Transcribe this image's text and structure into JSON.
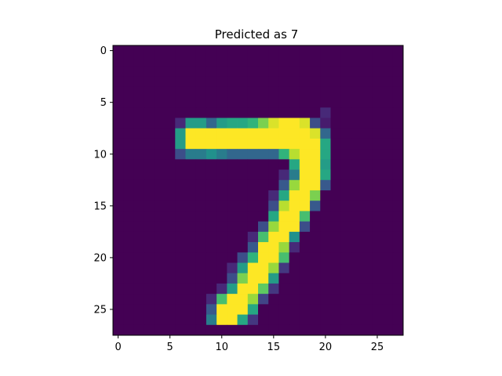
{
  "chart_data": {
    "type": "heatmap",
    "title": "Predicted as 7",
    "xlabel": "",
    "ylabel": "",
    "rows": 28,
    "cols": 28,
    "xlim": [
      -0.5,
      27.5
    ],
    "ylim": [
      27.5,
      -0.5
    ],
    "y_axis_inverted": true,
    "x_ticks": [
      0,
      5,
      10,
      15,
      20,
      25
    ],
    "y_ticks": [
      0,
      5,
      10,
      15,
      20,
      25
    ],
    "colormap": "viridis",
    "value_range": [
      0,
      1
    ],
    "grid": false,
    "legend": "none",
    "nonzero_cells": [
      [
        6,
        20,
        0.15
      ],
      [
        7,
        6,
        0.15
      ],
      [
        7,
        7,
        0.55
      ],
      [
        7,
        8,
        0.55
      ],
      [
        7,
        9,
        0.4
      ],
      [
        7,
        10,
        0.55
      ],
      [
        7,
        11,
        0.6
      ],
      [
        7,
        12,
        0.6
      ],
      [
        7,
        13,
        0.65
      ],
      [
        7,
        14,
        0.8
      ],
      [
        7,
        15,
        0.95
      ],
      [
        7,
        16,
        1.0
      ],
      [
        7,
        17,
        1.0
      ],
      [
        7,
        18,
        0.95
      ],
      [
        7,
        19,
        0.3
      ],
      [
        7,
        20,
        0.1
      ],
      [
        8,
        6,
        0.55
      ],
      [
        8,
        7,
        1.0
      ],
      [
        8,
        8,
        1.0
      ],
      [
        8,
        9,
        1.0
      ],
      [
        8,
        10,
        1.0
      ],
      [
        8,
        11,
        1.0
      ],
      [
        8,
        12,
        1.0
      ],
      [
        8,
        13,
        1.0
      ],
      [
        8,
        14,
        1.0
      ],
      [
        8,
        15,
        1.0
      ],
      [
        8,
        16,
        1.0
      ],
      [
        8,
        17,
        1.0
      ],
      [
        8,
        18,
        1.0
      ],
      [
        8,
        19,
        0.95
      ],
      [
        8,
        20,
        0.4
      ],
      [
        9,
        6,
        0.55
      ],
      [
        9,
        7,
        1.0
      ],
      [
        9,
        8,
        1.0
      ],
      [
        9,
        9,
        1.0
      ],
      [
        9,
        10,
        1.0
      ],
      [
        9,
        11,
        1.0
      ],
      [
        9,
        12,
        1.0
      ],
      [
        9,
        13,
        1.0
      ],
      [
        9,
        14,
        1.0
      ],
      [
        9,
        15,
        1.0
      ],
      [
        9,
        16,
        1.0
      ],
      [
        9,
        17,
        1.0
      ],
      [
        9,
        18,
        1.0
      ],
      [
        9,
        19,
        1.0
      ],
      [
        9,
        20,
        0.6
      ],
      [
        10,
        6,
        0.3
      ],
      [
        10,
        7,
        0.45
      ],
      [
        10,
        8,
        0.45
      ],
      [
        10,
        9,
        0.5
      ],
      [
        10,
        10,
        0.45
      ],
      [
        10,
        11,
        0.4
      ],
      [
        10,
        12,
        0.4
      ],
      [
        10,
        13,
        0.4
      ],
      [
        10,
        14,
        0.4
      ],
      [
        10,
        15,
        0.4
      ],
      [
        10,
        16,
        0.65
      ],
      [
        10,
        17,
        0.9
      ],
      [
        10,
        18,
        1.0
      ],
      [
        10,
        19,
        1.0
      ],
      [
        10,
        20,
        0.6
      ],
      [
        11,
        17,
        0.6
      ],
      [
        11,
        18,
        1.0
      ],
      [
        11,
        19,
        1.0
      ],
      [
        11,
        20,
        0.55
      ],
      [
        12,
        16,
        0.15
      ],
      [
        12,
        17,
        0.45
      ],
      [
        12,
        18,
        1.0
      ],
      [
        12,
        19,
        1.0
      ],
      [
        12,
        20,
        0.6
      ],
      [
        13,
        16,
        0.35
      ],
      [
        13,
        17,
        0.85
      ],
      [
        13,
        18,
        1.0
      ],
      [
        13,
        19,
        1.0
      ],
      [
        13,
        20,
        0.35
      ],
      [
        14,
        15,
        0.15
      ],
      [
        14,
        16,
        0.6
      ],
      [
        14,
        17,
        1.0
      ],
      [
        14,
        18,
        1.0
      ],
      [
        14,
        19,
        0.8
      ],
      [
        15,
        15,
        0.3
      ],
      [
        15,
        16,
        0.9
      ],
      [
        15,
        17,
        1.0
      ],
      [
        15,
        18,
        1.0
      ],
      [
        15,
        19,
        0.35
      ],
      [
        16,
        15,
        0.6
      ],
      [
        16,
        16,
        1.0
      ],
      [
        16,
        17,
        1.0
      ],
      [
        16,
        18,
        0.7
      ],
      [
        17,
        14,
        0.3
      ],
      [
        17,
        15,
        0.85
      ],
      [
        17,
        16,
        1.0
      ],
      [
        17,
        17,
        1.0
      ],
      [
        17,
        18,
        0.3
      ],
      [
        18,
        13,
        0.15
      ],
      [
        18,
        14,
        0.7
      ],
      [
        18,
        15,
        1.0
      ],
      [
        18,
        16,
        1.0
      ],
      [
        18,
        17,
        0.5
      ],
      [
        19,
        13,
        0.35
      ],
      [
        19,
        14,
        1.0
      ],
      [
        19,
        15,
        1.0
      ],
      [
        19,
        16,
        0.85
      ],
      [
        19,
        17,
        0.15
      ],
      [
        20,
        12,
        0.3
      ],
      [
        20,
        13,
        0.65
      ],
      [
        20,
        14,
        1.0
      ],
      [
        20,
        15,
        1.0
      ],
      [
        20,
        16,
        0.7
      ],
      [
        21,
        11,
        0.15
      ],
      [
        21,
        12,
        0.55
      ],
      [
        21,
        13,
        1.0
      ],
      [
        21,
        14,
        1.0
      ],
      [
        21,
        15,
        0.85
      ],
      [
        21,
        16,
        0.2
      ],
      [
        22,
        11,
        0.3
      ],
      [
        22,
        12,
        0.8
      ],
      [
        22,
        13,
        1.0
      ],
      [
        22,
        14,
        1.0
      ],
      [
        22,
        15,
        0.55
      ],
      [
        23,
        10,
        0.15
      ],
      [
        23,
        11,
        0.55
      ],
      [
        23,
        12,
        1.0
      ],
      [
        23,
        13,
        1.0
      ],
      [
        23,
        14,
        0.75
      ],
      [
        23,
        15,
        0.2
      ],
      [
        24,
        9,
        0.15
      ],
      [
        24,
        10,
        0.7
      ],
      [
        24,
        11,
        1.0
      ],
      [
        24,
        12,
        1.0
      ],
      [
        24,
        13,
        0.85
      ],
      [
        24,
        14,
        0.25
      ],
      [
        25,
        9,
        0.35
      ],
      [
        25,
        10,
        1.0
      ],
      [
        25,
        11,
        1.0
      ],
      [
        25,
        12,
        1.0
      ],
      [
        25,
        13,
        0.6
      ],
      [
        26,
        9,
        0.45
      ],
      [
        26,
        10,
        1.0
      ],
      [
        26,
        11,
        1.0
      ],
      [
        26,
        12,
        0.6
      ],
      [
        26,
        13,
        0.2
      ]
    ]
  }
}
